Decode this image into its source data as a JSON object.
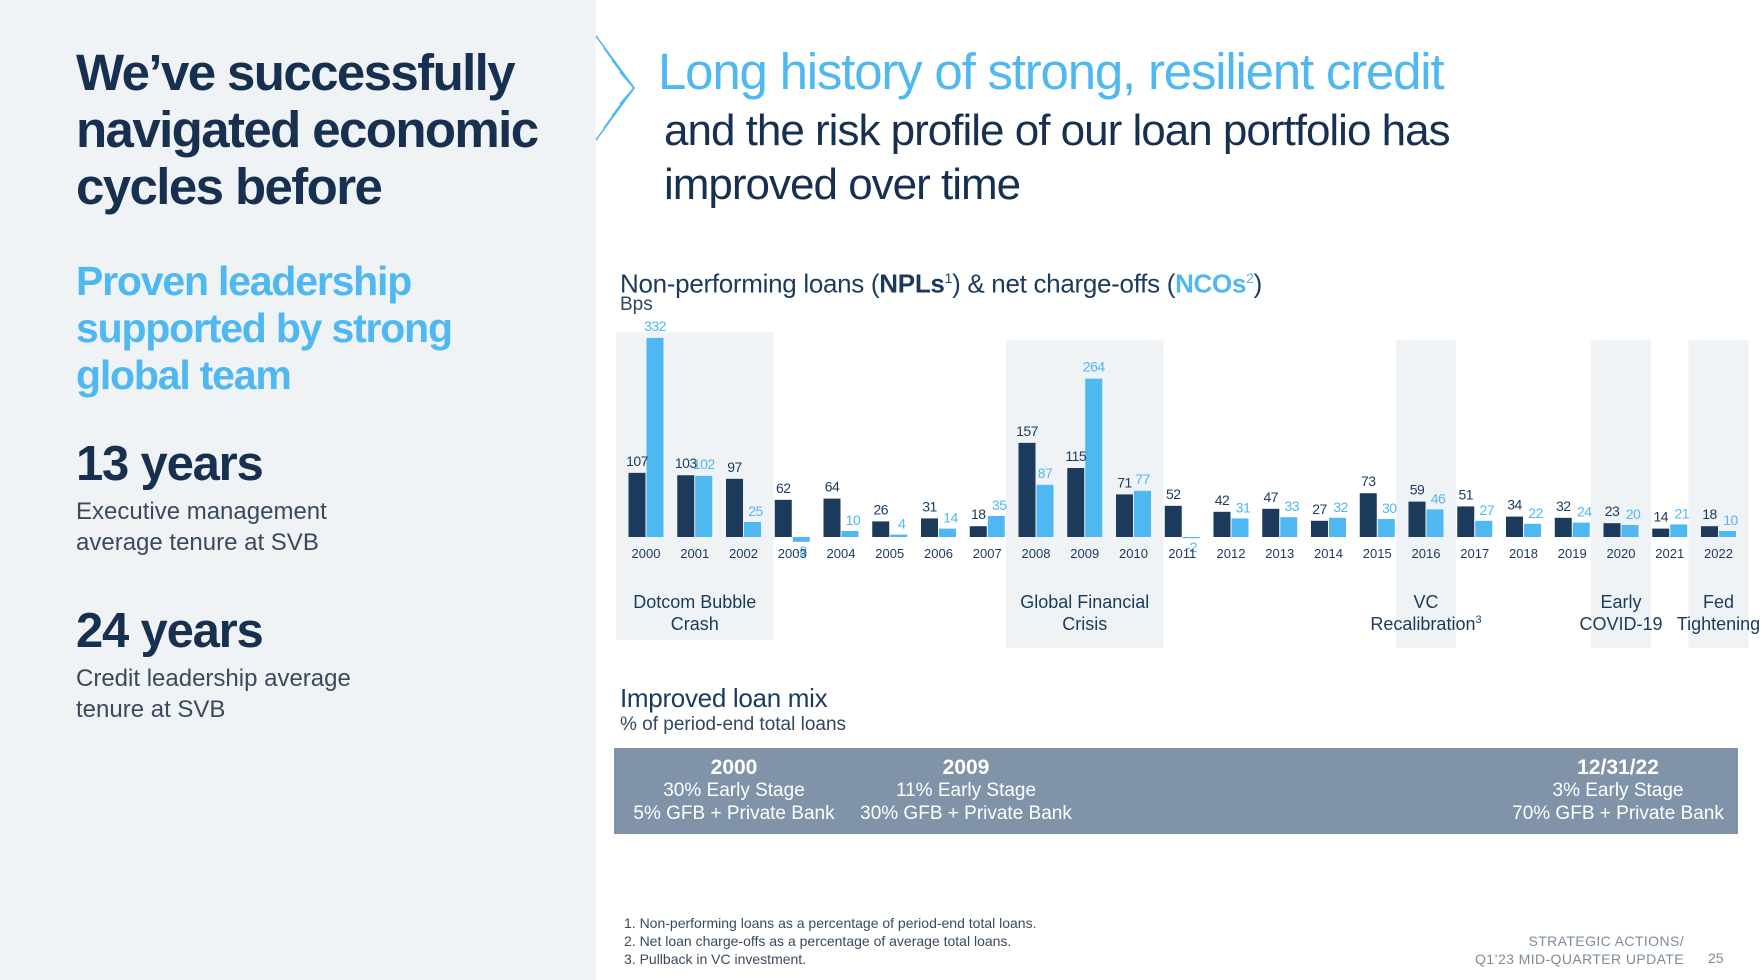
{
  "left": {
    "title": "We’ve successfully navigated economic cycles before",
    "subtitle": "Proven leadership supported by strong global team",
    "stats": [
      {
        "value": "13 years",
        "desc": "Executive management\naverage tenure at SVB"
      },
      {
        "value": "24 years",
        "desc": "Credit leadership average\ntenure at SVB"
      }
    ]
  },
  "header": {
    "title": "Long history of strong, resilient credit",
    "subtitle": "and the risk profile of our loan portfolio has improved over time"
  },
  "chart": {
    "title_prefix": "Non-performing loans (",
    "npl_label": "NPLs",
    "npl_sup": "1",
    "title_mid": ") & net charge-offs (",
    "nco_label": "NCOs",
    "nco_sup": "2",
    "title_suffix": ")",
    "unit": "Bps"
  },
  "chart_data": {
    "type": "bar",
    "categories": [
      "2000",
      "2001",
      "2002",
      "2003",
      "2004",
      "2005",
      "2006",
      "2007",
      "2008",
      "2009",
      "2010",
      "2011",
      "2012",
      "2013",
      "2014",
      "2015",
      "2016",
      "2017",
      "2018",
      "2019",
      "2020",
      "2021",
      "2022"
    ],
    "series": [
      {
        "name": "NPLs",
        "color": "#1b3a5c",
        "values": [
          107,
          103,
          97,
          62,
          64,
          26,
          31,
          18,
          157,
          115,
          71,
          52,
          42,
          47,
          27,
          73,
          59,
          51,
          34,
          32,
          23,
          14,
          18
        ]
      },
      {
        "name": "NCOs",
        "color": "#4fb8f0",
        "values": [
          332,
          102,
          25,
          -8,
          10,
          4,
          14,
          35,
          87,
          264,
          77,
          -2,
          31,
          33,
          32,
          30,
          46,
          27,
          22,
          24,
          20,
          21,
          10
        ]
      }
    ],
    "periods": [
      {
        "label": "Dotcom Bubble Crash",
        "from": "2000",
        "to": "2002"
      },
      {
        "label": "Global Financial Crisis",
        "from": "2008",
        "to": "2010"
      },
      {
        "label": "VC Recalibration",
        "sup": "3",
        "from": "2016",
        "to": "2016"
      },
      {
        "label": "Early COVID-19",
        "from": "2020",
        "to": "2020"
      },
      {
        "label": "Fed Tightening",
        "from": "2022",
        "to": "2022"
      }
    ],
    "ylabel": "Bps",
    "grid": false
  },
  "mix": {
    "title": "Improved loan mix",
    "subtitle": "% of period-end total loans",
    "columns": [
      {
        "year": "2000",
        "line1": "30% Early Stage",
        "line2": "5% GFB + Private Bank"
      },
      {
        "year": "2009",
        "line1": "11% Early Stage",
        "line2": "30% GFB + Private Bank"
      },
      {
        "year": "12/31/22",
        "line1": "3% Early Stage",
        "line2": "70% GFB + Private Bank"
      }
    ]
  },
  "footnotes": [
    "1.  Non-performing loans as a percentage of period-end total loans.",
    "2.  Net loan charge-offs as a percentage of average total loans.",
    "3.  Pullback in VC investment."
  ],
  "footer": {
    "line1": "STRATEGIC ACTIONS/",
    "line2": "Q1’23 MID-QUARTER UPDATE",
    "page": "25"
  }
}
